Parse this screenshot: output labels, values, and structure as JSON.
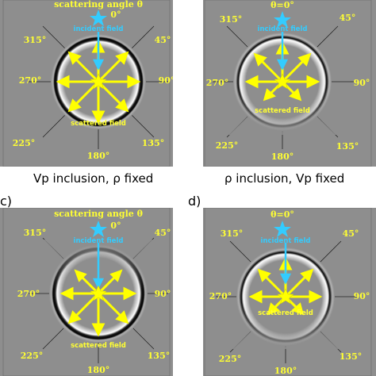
{
  "colors": {
    "background_gray": "#8e8e8e",
    "arrow_yellow": "#ffff00",
    "angle_label_yellow": "#ffff33",
    "incident_cyan": "#33ccff",
    "star_yellow": "#ffff00"
  },
  "panels": [
    {
      "id": "a",
      "label": "",
      "title": "scattering angle θ",
      "zero_label": "0°",
      "incident_label": "incident field",
      "scattered_label": "scattered field",
      "caption": "Vp inclusion, ρ fixed",
      "angles": [
        "45°",
        "90°",
        "135°",
        "180°",
        "225°",
        "270°",
        "315°"
      ],
      "pattern": "uniform"
    },
    {
      "id": "b",
      "label": "",
      "title": "θ=0°",
      "zero_label": "",
      "incident_label": "incident field",
      "scattered_label": "scattered field",
      "caption": "ρ inclusion, Vp fixed",
      "angles": [
        "45°",
        "90°",
        "135°",
        "180°",
        "225°",
        "270°",
        "315°"
      ],
      "pattern": "backward"
    },
    {
      "id": "c",
      "label": "c)",
      "title": "scattering angle θ",
      "zero_label": "0°",
      "incident_label": "incident field",
      "scattered_label": "scattered field",
      "caption": "",
      "angles": [
        "45°",
        "90°",
        "135°",
        "180°",
        "225°",
        "270°",
        "315°"
      ],
      "pattern": "uniform"
    },
    {
      "id": "d",
      "label": "d)",
      "title": "θ=0°",
      "zero_label": "",
      "incident_label": "incident field",
      "scattered_label": "scattered field",
      "caption": "",
      "angles": [
        "45°",
        "90°",
        "135°",
        "180°",
        "225°",
        "270°",
        "315°"
      ],
      "pattern": "backward"
    }
  ]
}
